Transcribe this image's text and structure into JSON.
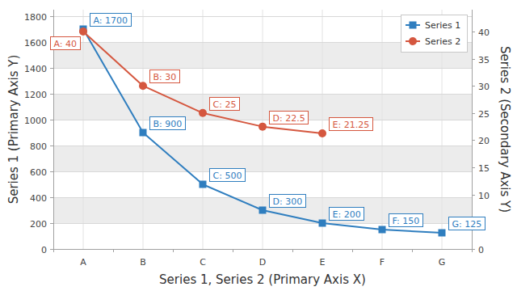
{
  "chart_data": {
    "type": "line",
    "x_label": "Series 1, Series 2 (Primary Axis X)",
    "y_label": "Series 1 (Primary Axis Y)",
    "y2_label": "Series 2 (Secondary Axis Y)",
    "categories": [
      "A",
      "B",
      "C",
      "D",
      "E",
      "F",
      "G"
    ],
    "series": [
      {
        "name": "Series 1",
        "color": "#2f7ebf",
        "marker": "square",
        "values": [
          1700,
          900,
          500,
          300,
          200,
          150,
          125
        ],
        "value_labels": [
          "A: 1700",
          "B: 900",
          "C: 500",
          "D: 300",
          "E: 200",
          "F: 150",
          "G: 125"
        ]
      },
      {
        "name": "Series 2",
        "color": "#d5573f",
        "marker": "circle",
        "axis": "y2",
        "values": [
          40,
          30,
          25,
          22.5,
          21.25,
          null,
          null
        ],
        "value_labels": [
          "A: 40",
          "B: 30",
          "C: 25",
          "D: 22.5",
          "E: 21.25",
          null,
          null
        ]
      }
    ],
    "ylim": [
      0,
      1850
    ],
    "yticks": [
      0,
      200,
      400,
      600,
      800,
      1000,
      1200,
      1400,
      1600,
      1800
    ],
    "y2lim": [
      0,
      44
    ],
    "y2ticks": [
      0,
      5,
      10,
      15,
      20,
      25,
      30,
      35,
      40
    ],
    "grid": true,
    "legend": "top-right",
    "data_labels": true
  }
}
